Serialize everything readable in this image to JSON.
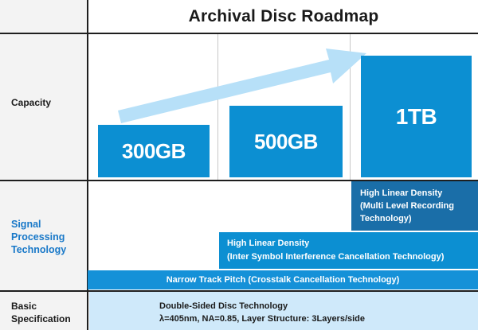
{
  "title": "Archival Disc Roadmap",
  "rows": {
    "capacity": "Capacity",
    "signal_line1": "Signal",
    "signal_line2": "Processing",
    "signal_line3": "Technology",
    "basic_line1": "Basic",
    "basic_line2": "Specification"
  },
  "capacities": [
    "300GB",
    "500GB",
    "1TB"
  ],
  "technologies": {
    "high_density_mlr": {
      "line1": "High Linear Density",
      "line2": "(Multi Level Recording",
      "line3": "Technology)"
    },
    "high_density_isi": {
      "line1": "High Linear Density",
      "line2": "(Inter Symbol Interference Cancellation Technology)"
    },
    "narrow_track": "Narrow Track Pitch (Crosstalk Cancellation Technology)"
  },
  "basic_spec": {
    "line1": "Double-Sided Disc Technology",
    "line2": "λ=405nm, NA=0.85, Layer Structure: 3Layers/side"
  },
  "colors": {
    "capacity_box": "#0c8fd2",
    "bar_dark": "#1a6ea8",
    "bar_mid": "#0c8fd2",
    "bar_light": "#1591d8",
    "arrow": "#b7e0f8",
    "signal_label": "#1878c8",
    "spec_band": "#cfe9fa"
  }
}
